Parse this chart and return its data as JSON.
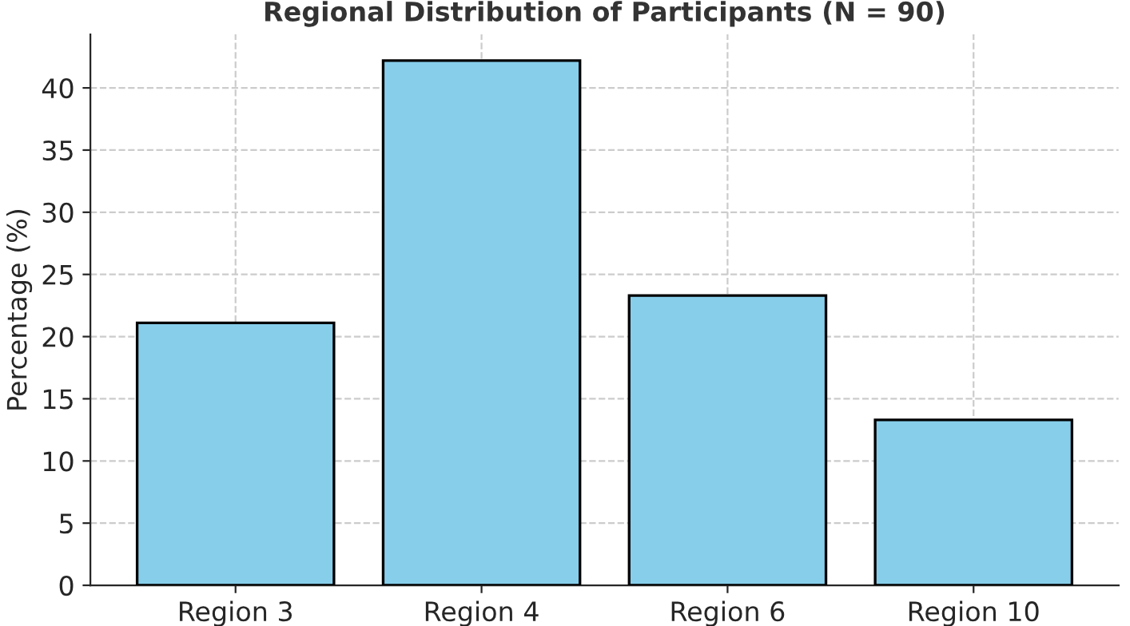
{
  "chart_data": {
    "type": "bar",
    "title": "Regional Distribution of Participants (N = 90)",
    "ylabel": "Percentage (%)",
    "categories": [
      "Region 3",
      "Region 4",
      "Region 6",
      "Region 10"
    ],
    "values": [
      21.1,
      42.2,
      23.3,
      13.3
    ],
    "color": "#87ceeb",
    "ylim": [
      0,
      44.3
    ],
    "yticks": [
      0,
      5,
      10,
      15,
      20,
      25,
      30,
      35,
      40
    ],
    "grid": true
  }
}
